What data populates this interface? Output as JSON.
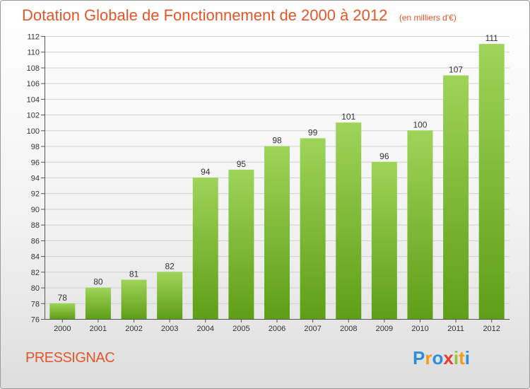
{
  "title": "Dotation Globale de Fonctionnement de 2000 à 2012",
  "subtitle": "(en milliers d'€)",
  "commune": "PRESSIGNAC",
  "brand": {
    "letters": [
      "P",
      "r",
      "o",
      "x",
      "i",
      "t",
      "i"
    ],
    "colors": [
      "#2e8fd8",
      "#f39a1e",
      "#2e8fd8",
      "#e63b2e",
      "#8cc63f",
      "#f39a1e",
      "#2e8fd8"
    ]
  },
  "colors": {
    "bar_top": "#9fd45a",
    "bar_bottom": "#5f9e16",
    "title": "#e0572a",
    "grid": "#d0d0d0"
  },
  "chart_data": {
    "type": "bar",
    "categories": [
      "2000",
      "2001",
      "2002",
      "2003",
      "2004",
      "2005",
      "2006",
      "2007",
      "2008",
      "2009",
      "2010",
      "2011",
      "2012"
    ],
    "values": [
      78,
      80,
      81,
      82,
      94,
      95,
      98,
      99,
      101,
      96,
      100,
      107,
      111
    ],
    "ylim": [
      76,
      112
    ],
    "yticks": [
      76,
      78,
      80,
      82,
      84,
      86,
      88,
      90,
      92,
      94,
      96,
      98,
      100,
      102,
      104,
      106,
      108,
      110,
      112
    ],
    "grid": true,
    "xlabel": "",
    "ylabel": ""
  }
}
